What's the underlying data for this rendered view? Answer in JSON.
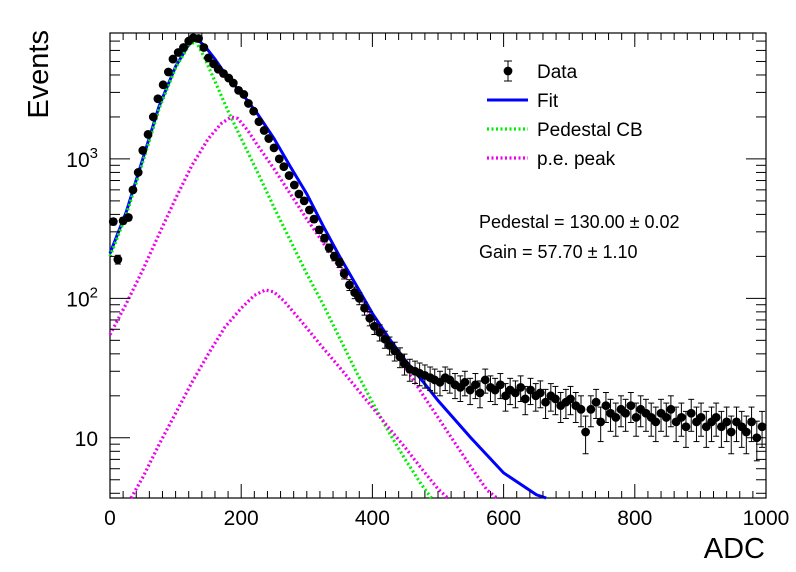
{
  "chart_data": {
    "type": "scatter",
    "xlabel": "ADC",
    "ylabel": "Events",
    "xlim": [
      0,
      1000
    ],
    "ylim": [
      3.7,
      8000
    ],
    "yscale": "log",
    "grid": false,
    "legend_position": "top-right",
    "x_ticks": [
      {
        "value": 0,
        "label": "0"
      },
      {
        "value": 200,
        "label": "200"
      },
      {
        "value": 400,
        "label": "400"
      },
      {
        "value": 600,
        "label": "600"
      },
      {
        "value": 800,
        "label": "800"
      },
      {
        "value": 1000,
        "label": "1000"
      }
    ],
    "y_ticks": [
      {
        "value": 10,
        "base": "10",
        "exp": ""
      },
      {
        "value": 100,
        "base": "10",
        "exp": "2"
      },
      {
        "value": 1000,
        "base": "10",
        "exp": "3"
      }
    ],
    "legend": [
      {
        "label": "Data",
        "style": "marker",
        "color": "#000000"
      },
      {
        "label": "Fit",
        "style": "solid",
        "color": "#0000ff"
      },
      {
        "label": "Pedestal CB",
        "style": "dotted",
        "color": "#00ee00"
      },
      {
        "label": "p.e. peak",
        "style": "dotted",
        "color": "#ee00ee"
      }
    ],
    "annotations": [
      {
        "text": "Pedestal = 130.00",
        "pm": "±",
        "err": "0.02"
      },
      {
        "text": "Gain = 57.70",
        "pm": "±",
        "err": "1.10"
      }
    ],
    "series": [
      {
        "name": "Data",
        "style": "markers_errorbars",
        "color": "#000000",
        "points": [
          [
            5,
            355
          ],
          [
            12,
            190
          ],
          [
            20,
            360
          ],
          [
            28,
            380
          ],
          [
            35,
            600
          ],
          [
            43,
            800
          ],
          [
            50,
            1150
          ],
          [
            58,
            1500
          ],
          [
            66,
            2000
          ],
          [
            73,
            2700
          ],
          [
            81,
            3400
          ],
          [
            89,
            4200
          ],
          [
            96,
            5200
          ],
          [
            104,
            5800
          ],
          [
            112,
            6300
          ],
          [
            120,
            7000
          ],
          [
            127,
            7400
          ],
          [
            135,
            7300
          ],
          [
            143,
            6300
          ],
          [
            150,
            5300
          ],
          [
            158,
            4800
          ],
          [
            165,
            4400
          ],
          [
            173,
            4100
          ],
          [
            181,
            3800
          ],
          [
            188,
            3500
          ],
          [
            196,
            3100
          ],
          [
            204,
            2900
          ],
          [
            211,
            2500
          ],
          [
            219,
            2200
          ],
          [
            227,
            1850
          ],
          [
            235,
            1600
          ],
          [
            242,
            1400
          ],
          [
            250,
            1200
          ],
          [
            258,
            1000
          ],
          [
            265,
            880
          ],
          [
            273,
            760
          ],
          [
            281,
            650
          ],
          [
            288,
            560
          ],
          [
            296,
            500
          ],
          [
            304,
            430
          ],
          [
            311,
            370
          ],
          [
            319,
            310
          ],
          [
            327,
            270
          ],
          [
            334,
            230
          ],
          [
            342,
            200
          ],
          [
            350,
            180
          ],
          [
            357,
            150
          ],
          [
            365,
            125
          ],
          [
            373,
            110
          ],
          [
            380,
            100
          ],
          [
            388,
            85
          ],
          [
            396,
            72
          ],
          [
            403,
            63
          ],
          [
            411,
            57
          ],
          [
            419,
            51
          ],
          [
            426,
            46
          ],
          [
            434,
            42
          ],
          [
            442,
            38
          ],
          [
            449,
            34
          ],
          [
            457,
            31
          ],
          [
            465,
            30
          ],
          [
            472,
            29
          ],
          [
            480,
            28
          ],
          [
            488,
            27
          ],
          [
            495,
            26
          ],
          [
            503,
            25
          ],
          [
            511,
            27
          ],
          [
            518,
            26
          ],
          [
            526,
            24
          ],
          [
            534,
            23
          ],
          [
            541,
            25
          ],
          [
            549,
            22
          ],
          [
            557,
            24
          ],
          [
            564,
            21
          ],
          [
            572,
            26
          ],
          [
            580,
            23
          ],
          [
            587,
            22
          ],
          [
            595,
            24
          ],
          [
            603,
            20
          ],
          [
            610,
            22
          ],
          [
            618,
            21
          ],
          [
            626,
            23
          ],
          [
            633,
            19
          ],
          [
            641,
            22
          ],
          [
            649,
            20
          ],
          [
            656,
            21
          ],
          [
            664,
            18
          ],
          [
            672,
            20
          ],
          [
            679,
            19
          ],
          [
            687,
            17
          ],
          [
            695,
            18
          ],
          [
            702,
            19
          ],
          [
            710,
            17
          ],
          [
            718,
            16
          ],
          [
            725,
            11
          ],
          [
            733,
            16
          ],
          [
            741,
            18
          ],
          [
            748,
            13
          ],
          [
            756,
            17
          ],
          [
            763,
            15
          ],
          [
            771,
            14
          ],
          [
            779,
            16
          ],
          [
            786,
            15
          ],
          [
            794,
            17
          ],
          [
            802,
            14
          ],
          [
            809,
            16
          ],
          [
            817,
            15
          ],
          [
            825,
            14
          ],
          [
            832,
            13
          ],
          [
            840,
            15
          ],
          [
            848,
            14
          ],
          [
            855,
            16
          ],
          [
            863,
            13
          ],
          [
            871,
            14
          ],
          [
            878,
            12
          ],
          [
            886,
            15
          ],
          [
            894,
            13
          ],
          [
            901,
            14
          ],
          [
            909,
            12
          ],
          [
            917,
            13
          ],
          [
            924,
            14
          ],
          [
            932,
            12
          ],
          [
            940,
            13
          ],
          [
            947,
            11
          ],
          [
            955,
            13
          ],
          [
            963,
            12
          ],
          [
            970,
            11
          ],
          [
            978,
            13
          ],
          [
            986,
            10
          ],
          [
            994,
            12
          ]
        ]
      },
      {
        "name": "Fit",
        "style": "solid",
        "color": "#0000ff",
        "points": [
          [
            0,
            210
          ],
          [
            25,
            420
          ],
          [
            50,
            1000
          ],
          [
            75,
            2400
          ],
          [
            100,
            4600
          ],
          [
            120,
            6600
          ],
          [
            132,
            7300
          ],
          [
            145,
            6400
          ],
          [
            160,
            5200
          ],
          [
            180,
            3800
          ],
          [
            200,
            3000
          ],
          [
            225,
            2100
          ],
          [
            250,
            1400
          ],
          [
            275,
            880
          ],
          [
            300,
            560
          ],
          [
            325,
            330
          ],
          [
            350,
            200
          ],
          [
            375,
            125
          ],
          [
            400,
            78
          ],
          [
            425,
            52
          ],
          [
            450,
            36
          ],
          [
            475,
            26
          ],
          [
            500,
            18.5
          ],
          [
            550,
            10
          ],
          [
            600,
            5.6
          ],
          [
            650,
            3.9
          ],
          [
            665,
            3.7
          ]
        ]
      },
      {
        "name": "Pedestal CB",
        "style": "dotted",
        "color": "#00ee00",
        "points": [
          [
            0,
            200
          ],
          [
            25,
            400
          ],
          [
            50,
            950
          ],
          [
            75,
            2300
          ],
          [
            100,
            4500
          ],
          [
            120,
            6500
          ],
          [
            131,
            7000
          ],
          [
            145,
            5200
          ],
          [
            160,
            3600
          ],
          [
            180,
            2200
          ],
          [
            200,
            1400
          ],
          [
            225,
            800
          ],
          [
            250,
            450
          ],
          [
            275,
            260
          ],
          [
            300,
            150
          ],
          [
            325,
            90
          ],
          [
            350,
            52
          ],
          [
            375,
            30
          ],
          [
            400,
            18
          ],
          [
            425,
            11
          ],
          [
            450,
            7
          ],
          [
            475,
            4.6
          ],
          [
            490,
            3.7
          ]
        ]
      },
      {
        "name": "p.e. peak",
        "style": "dotted",
        "color": "#ee00ee",
        "points": [
          [
            0,
            55
          ],
          [
            25,
            92
          ],
          [
            50,
            160
          ],
          [
            75,
            290
          ],
          [
            100,
            520
          ],
          [
            125,
            900
          ],
          [
            150,
            1400
          ],
          [
            170,
            1800
          ],
          [
            185,
            2000
          ],
          [
            195,
            1950
          ],
          [
            210,
            1600
          ],
          [
            225,
            1250
          ],
          [
            250,
            850
          ],
          [
            275,
            560
          ],
          [
            300,
            370
          ],
          [
            325,
            250
          ],
          [
            350,
            165
          ],
          [
            375,
            110
          ],
          [
            400,
            72
          ],
          [
            425,
            48
          ],
          [
            450,
            32
          ],
          [
            475,
            21
          ],
          [
            500,
            14
          ],
          [
            525,
            9.3
          ],
          [
            550,
            6.2
          ],
          [
            575,
            4.2
          ],
          [
            590,
            3.7
          ]
        ]
      },
      {
        "name": "",
        "style": "dotted",
        "color": "#ee00ee",
        "points": [
          [
            32,
            3.7
          ],
          [
            50,
            5.2
          ],
          [
            75,
            9
          ],
          [
            100,
            15
          ],
          [
            125,
            25
          ],
          [
            150,
            40
          ],
          [
            175,
            62
          ],
          [
            200,
            85
          ],
          [
            220,
            105
          ],
          [
            237,
            115
          ],
          [
            250,
            111
          ],
          [
            265,
            96
          ],
          [
            290,
            70
          ],
          [
            325,
            44
          ],
          [
            350,
            32
          ],
          [
            375,
            23
          ],
          [
            400,
            16.5
          ],
          [
            425,
            11.8
          ],
          [
            450,
            8.5
          ],
          [
            475,
            6
          ],
          [
            500,
            4.3
          ],
          [
            515,
            3.7
          ]
        ]
      }
    ]
  }
}
